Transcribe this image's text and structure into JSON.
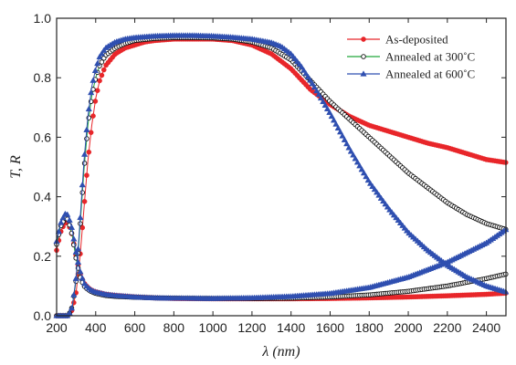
{
  "chart_data": {
    "type": "line",
    "xlabel": "λ (nm)",
    "ylabel": "T, R",
    "xlim": [
      200,
      2500
    ],
    "ylim": [
      0.0,
      1.0
    ],
    "x_ticks": [
      "200",
      "400",
      "600",
      "800",
      "1000",
      "1200",
      "1400",
      "1600",
      "1800",
      "2000",
      "2200",
      "2400"
    ],
    "y_ticks": [
      "0.0",
      "0.2",
      "0.4",
      "0.6",
      "0.8",
      "1.0"
    ],
    "legend_position": "top-right",
    "series": [
      {
        "name": "As-deposited",
        "color": "#e8262a",
        "marker": "filled-circle",
        "transmittance": {
          "x": [
            200,
            260,
            280,
            300,
            320,
            340,
            360,
            380,
            400,
            420,
            450,
            500,
            550,
            600,
            650,
            700,
            800,
            900,
            1000,
            1100,
            1200,
            1300,
            1400,
            1500,
            1600,
            1700,
            1800,
            1900,
            2000,
            2100,
            2200,
            2300,
            2400,
            2500
          ],
          "y": [
            0.0,
            0.0,
            0.02,
            0.08,
            0.2,
            0.36,
            0.52,
            0.64,
            0.73,
            0.79,
            0.84,
            0.88,
            0.9,
            0.91,
            0.92,
            0.925,
            0.93,
            0.93,
            0.93,
            0.925,
            0.91,
            0.88,
            0.83,
            0.76,
            0.71,
            0.67,
            0.64,
            0.62,
            0.6,
            0.58,
            0.565,
            0.545,
            0.525,
            0.515
          ]
        },
        "reflectance": {
          "x": [
            200,
            220,
            240,
            250,
            260,
            280,
            300,
            320,
            340,
            360,
            380,
            400,
            450,
            500,
            600,
            700,
            800,
            1000,
            1200,
            1400,
            1600,
            1800,
            2000,
            2200,
            2400,
            2500
          ],
          "y": [
            0.22,
            0.28,
            0.31,
            0.315,
            0.31,
            0.27,
            0.2,
            0.14,
            0.11,
            0.095,
            0.085,
            0.08,
            0.072,
            0.068,
            0.063,
            0.06,
            0.058,
            0.057,
            0.057,
            0.057,
            0.058,
            0.06,
            0.063,
            0.067,
            0.072,
            0.076
          ]
        }
      },
      {
        "name": "Annealed at 300˚C",
        "color": "#22a63a",
        "marker": "open-circle",
        "transmittance": {
          "x": [
            200,
            260,
            280,
            300,
            320,
            340,
            360,
            380,
            400,
            420,
            450,
            500,
            550,
            600,
            700,
            800,
            900,
            1000,
            1100,
            1200,
            1300,
            1400,
            1500,
            1600,
            1700,
            1800,
            1900,
            2000,
            2100,
            2200,
            2300,
            2400,
            2500
          ],
          "y": [
            0.0,
            0.0,
            0.03,
            0.12,
            0.3,
            0.49,
            0.64,
            0.74,
            0.8,
            0.84,
            0.875,
            0.9,
            0.915,
            0.925,
            0.932,
            0.935,
            0.935,
            0.934,
            0.93,
            0.92,
            0.9,
            0.86,
            0.79,
            0.72,
            0.66,
            0.6,
            0.54,
            0.48,
            0.43,
            0.38,
            0.34,
            0.31,
            0.29
          ]
        },
        "reflectance": {
          "x": [
            200,
            220,
            240,
            250,
            260,
            280,
            300,
            320,
            340,
            360,
            380,
            400,
            450,
            500,
            600,
            700,
            800,
            1000,
            1200,
            1400,
            1600,
            1800,
            2000,
            2200,
            2400,
            2500
          ],
          "y": [
            0.24,
            0.3,
            0.325,
            0.33,
            0.32,
            0.27,
            0.19,
            0.13,
            0.1,
            0.088,
            0.08,
            0.075,
            0.068,
            0.065,
            0.062,
            0.06,
            0.059,
            0.058,
            0.058,
            0.059,
            0.063,
            0.07,
            0.082,
            0.1,
            0.125,
            0.14
          ]
        }
      },
      {
        "name": "Annealed at 600˚C",
        "color": "#2f4fb0",
        "marker": "filled-triangle",
        "transmittance": {
          "x": [
            200,
            260,
            280,
            300,
            320,
            340,
            360,
            380,
            400,
            420,
            450,
            500,
            550,
            600,
            700,
            800,
            900,
            1000,
            1100,
            1200,
            1300,
            1350,
            1400,
            1450,
            1500,
            1600,
            1700,
            1800,
            1900,
            2000,
            2100,
            2200,
            2300,
            2400,
            2500
          ],
          "y": [
            0.0,
            0.0,
            0.03,
            0.13,
            0.32,
            0.52,
            0.67,
            0.77,
            0.83,
            0.87,
            0.9,
            0.92,
            0.93,
            0.935,
            0.94,
            0.942,
            0.942,
            0.94,
            0.936,
            0.93,
            0.918,
            0.905,
            0.88,
            0.84,
            0.79,
            0.68,
            0.56,
            0.45,
            0.36,
            0.28,
            0.22,
            0.17,
            0.13,
            0.1,
            0.08
          ]
        },
        "reflectance": {
          "x": [
            200,
            220,
            240,
            250,
            260,
            280,
            300,
            320,
            340,
            360,
            380,
            400,
            450,
            500,
            600,
            700,
            800,
            1000,
            1200,
            1400,
            1600,
            1800,
            2000,
            2200,
            2400,
            2500
          ],
          "y": [
            0.25,
            0.31,
            0.34,
            0.345,
            0.335,
            0.29,
            0.21,
            0.15,
            0.11,
            0.095,
            0.085,
            0.08,
            0.072,
            0.068,
            0.063,
            0.06,
            0.059,
            0.058,
            0.06,
            0.065,
            0.075,
            0.095,
            0.13,
            0.18,
            0.245,
            0.29
          ]
        }
      }
    ]
  }
}
